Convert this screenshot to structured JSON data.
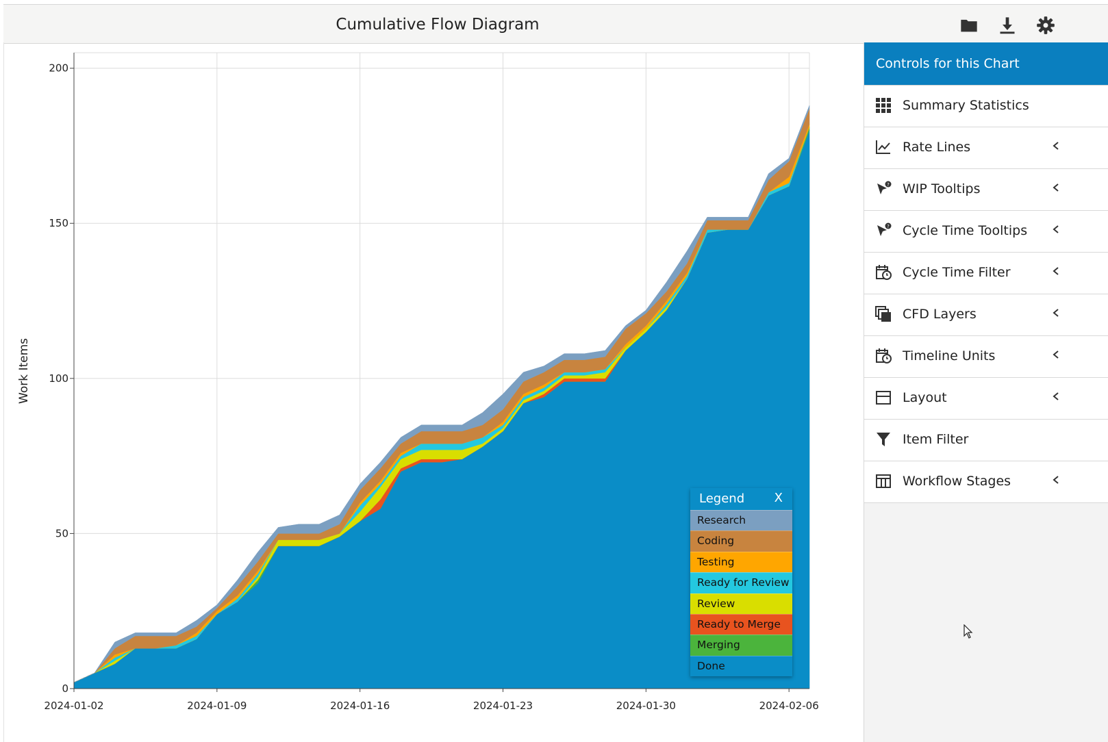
{
  "header": {
    "title": "Cumulative Flow Diagram"
  },
  "toolbar": {
    "icons": [
      "folder-icon",
      "download-icon",
      "gear-icon"
    ]
  },
  "colors": {
    "Research": "#7b9fc1",
    "Coding": "#c8843f",
    "Testing": "#ffa600",
    "Ready for Review": "#24c8e0",
    "Review": "#d9de00",
    "Ready to Merge": "#e8531f",
    "Merging": "#4bb43c",
    "Done": "#0a8dc7",
    "panel_header": "#0a7fbf"
  },
  "chart_data": {
    "type": "area",
    "stacked": true,
    "title": "",
    "xlabel": "",
    "ylabel": "Work Items",
    "ylim": [
      0,
      205
    ],
    "yticks": [
      0,
      50,
      100,
      150,
      200
    ],
    "xtick_labels": [
      "2024-01-02",
      "2024-01-09",
      "2024-01-16",
      "2024-01-23",
      "2024-01-30",
      "2024-02-06"
    ],
    "x": [
      "2024-01-02",
      "2024-01-03",
      "2024-01-04",
      "2024-01-05",
      "2024-01-06",
      "2024-01-07",
      "2024-01-08",
      "2024-01-09",
      "2024-01-10",
      "2024-01-11",
      "2024-01-12",
      "2024-01-13",
      "2024-01-14",
      "2024-01-15",
      "2024-01-16",
      "2024-01-17",
      "2024-01-18",
      "2024-01-19",
      "2024-01-20",
      "2024-01-21",
      "2024-01-22",
      "2024-01-23",
      "2024-01-24",
      "2024-01-25",
      "2024-01-26",
      "2024-01-27",
      "2024-01-28",
      "2024-01-29",
      "2024-01-30",
      "2024-01-31",
      "2024-02-01",
      "2024-02-02",
      "2024-02-03",
      "2024-02-04",
      "2024-02-05",
      "2024-02-06",
      "2024-02-07"
    ],
    "series": [
      {
        "name": "Done",
        "values": [
          2,
          5,
          8,
          13,
          13,
          13,
          16,
          24,
          28,
          34,
          46,
          46,
          46,
          49,
          54,
          58,
          70,
          73,
          73,
          74,
          78,
          83,
          92,
          94,
          99,
          99,
          99,
          109,
          115,
          122,
          132,
          147,
          148,
          148,
          159,
          162,
          180
        ]
      },
      {
        "name": "Merging",
        "values": [
          0,
          0,
          0,
          0,
          0,
          0,
          0,
          0,
          0,
          1,
          0,
          0,
          0,
          0,
          0,
          0,
          0,
          0,
          0,
          0,
          0,
          0,
          0,
          0,
          0,
          0,
          0,
          0,
          0,
          0,
          0,
          0,
          0,
          0,
          0,
          0,
          1
        ]
      },
      {
        "name": "Ready to Merge",
        "values": [
          0,
          0,
          0,
          0,
          0,
          0,
          0,
          0,
          0,
          0,
          0,
          0,
          0,
          0,
          0,
          3,
          1,
          1,
          1,
          0,
          0,
          0,
          0,
          1,
          1,
          1,
          1,
          0,
          0,
          0,
          0,
          0,
          0,
          0,
          0,
          0,
          0
        ]
      },
      {
        "name": "Review",
        "values": [
          0,
          0,
          1,
          0,
          0,
          0,
          0,
          0,
          0,
          1,
          2,
          2,
          2,
          1,
          3,
          4,
          3,
          3,
          3,
          3,
          1,
          1,
          1,
          1,
          1,
          1,
          2,
          1,
          1,
          1,
          0,
          0,
          0,
          0,
          0,
          0,
          0
        ]
      },
      {
        "name": "Ready for Review",
        "values": [
          0,
          0,
          1,
          0,
          0,
          1,
          1,
          0,
          1,
          1,
          0,
          0,
          0,
          0,
          2,
          1,
          1,
          2,
          2,
          2,
          2,
          1,
          1,
          1,
          1,
          1,
          1,
          0,
          0,
          1,
          1,
          1,
          0,
          0,
          1,
          1,
          0
        ]
      },
      {
        "name": "Testing",
        "values": [
          0,
          0,
          1,
          0,
          0,
          0,
          1,
          1,
          1,
          1,
          0,
          0,
          0,
          0,
          1,
          1,
          1,
          0,
          0,
          0,
          0,
          1,
          1,
          1,
          0,
          0,
          0,
          1,
          1,
          1,
          1,
          0,
          0,
          0,
          0,
          2,
          1
        ]
      },
      {
        "name": "Coding",
        "values": [
          0,
          0,
          2,
          4,
          4,
          3,
          2,
          1,
          3,
          3,
          2,
          2,
          2,
          3,
          4,
          4,
          3,
          4,
          4,
          4,
          4,
          4,
          4,
          4,
          4,
          4,
          4,
          5,
          4,
          3,
          3,
          3,
          3,
          3,
          4,
          5,
          5
        ]
      },
      {
        "name": "Research",
        "values": [
          0,
          0,
          2,
          1,
          1,
          1,
          2,
          1,
          2,
          3,
          2,
          3,
          3,
          3,
          2,
          2,
          2,
          2,
          2,
          2,
          4,
          5,
          3,
          2,
          2,
          2,
          2,
          1,
          1,
          3,
          4,
          1,
          1,
          1,
          2,
          1,
          1
        ]
      }
    ]
  },
  "legend": {
    "title": "Legend",
    "close": "X",
    "items": [
      "Research",
      "Coding",
      "Testing",
      "Ready for Review",
      "Review",
      "Ready to Merge",
      "Merging",
      "Done"
    ]
  },
  "panel": {
    "title": "Controls for this Chart",
    "items": [
      {
        "label": "Summary Statistics",
        "icon": "grid-icon",
        "chevron": false
      },
      {
        "label": "Rate Lines",
        "icon": "chart-line-icon",
        "chevron": true
      },
      {
        "label": "WIP Tooltips",
        "icon": "pointer-help-icon",
        "chevron": true
      },
      {
        "label": "Cycle Time Tooltips",
        "icon": "pointer-help-icon",
        "chevron": true
      },
      {
        "label": "Cycle Time Filter",
        "icon": "calendar-clock-icon",
        "chevron": true
      },
      {
        "label": "CFD Layers",
        "icon": "layers-icon",
        "chevron": true
      },
      {
        "label": "Timeline Units",
        "icon": "calendar-clock-icon",
        "chevron": true
      },
      {
        "label": "Layout",
        "icon": "layout-icon",
        "chevron": true
      },
      {
        "label": "Item Filter",
        "icon": "filter-icon",
        "chevron": false
      },
      {
        "label": "Workflow Stages",
        "icon": "columns-icon",
        "chevron": true
      }
    ]
  }
}
